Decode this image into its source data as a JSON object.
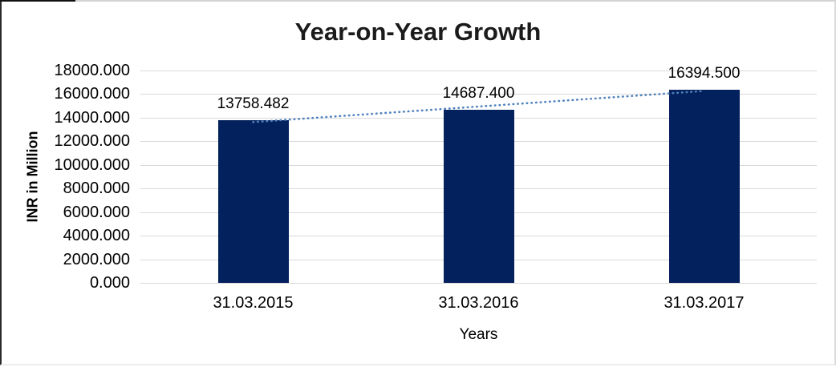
{
  "chart_data": {
    "type": "bar",
    "title": "Year-on-Year Growth",
    "xlabel": "Years",
    "ylabel": "INR in Million",
    "categories": [
      "31.03.2015",
      "31.03.2016",
      "31.03.2017"
    ],
    "values": [
      13758.482,
      14687.4,
      16394.5
    ],
    "value_labels": [
      "13758.482",
      "14687.400",
      "16394.500"
    ],
    "ylim": [
      0,
      18000
    ],
    "y_tick_step": 2000,
    "y_tick_labels": [
      "18000.000",
      "16000.000",
      "14000.000",
      "12000.000",
      "10000.000",
      "8000.000",
      "6000.000",
      "4000.000",
      "2000.000",
      "0.000"
    ],
    "grid": "horizontal",
    "legend": "none",
    "bar_color": "#03215C",
    "trendline": {
      "type": "linear",
      "style": "dotted",
      "color": "#4F81BD"
    }
  }
}
